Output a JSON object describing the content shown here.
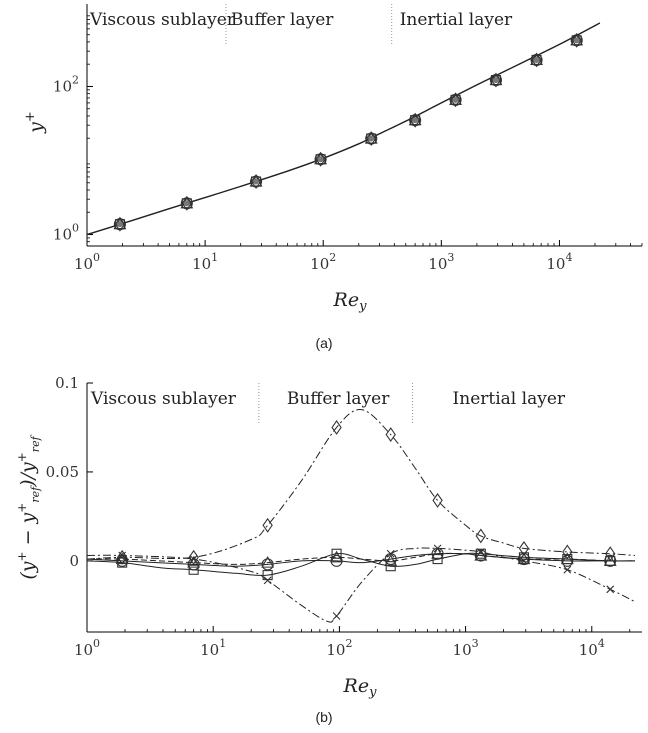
{
  "captions": {
    "a": "(a)",
    "b": "(b)"
  },
  "chart_data": [
    {
      "id": "a",
      "type": "line",
      "xscale": "log",
      "yscale": "log",
      "xlim": [
        1,
        50000
      ],
      "ylim": [
        0.7,
        1300
      ],
      "xlabel": "Re_y",
      "ylabel": "y+",
      "xticks": [
        {
          "base": "10",
          "exp": "0",
          "value": 1
        },
        {
          "base": "10",
          "exp": "1",
          "value": 10
        },
        {
          "base": "10",
          "exp": "2",
          "value": 100
        },
        {
          "base": "10",
          "exp": "3",
          "value": 1000
        },
        {
          "base": "10",
          "exp": "4",
          "value": 10000
        }
      ],
      "yticks": [
        {
          "base": "10",
          "exp": "0",
          "value": 1
        },
        {
          "base": "10",
          "exp": "2",
          "value": 100
        }
      ],
      "regions": [
        {
          "label": "Viscous sublayer",
          "x_start": 1
        },
        {
          "label": "Buffer layer",
          "x_start": 15
        },
        {
          "label": "Inertial layer",
          "x_start": 380
        }
      ],
      "region_dividers": [
        15,
        380
      ],
      "curve": {
        "x": [
          1,
          2,
          5,
          10,
          20,
          50,
          100,
          200,
          300,
          500,
          1000,
          2000,
          5000,
          10000,
          22000
        ],
        "y": [
          1,
          1.41,
          2.24,
          3.16,
          4.47,
          7.2,
          10.7,
          16.8,
          23,
          34,
          60,
          105,
          215,
          370,
          720
        ]
      },
      "markers": {
        "x": [
          1.9,
          7,
          27,
          95,
          255,
          600,
          1320,
          2900,
          6400,
          14000
        ],
        "y": [
          1.38,
          2.64,
          5.2,
          10.4,
          19.8,
          35,
          66,
          122,
          228,
          420
        ]
      }
    },
    {
      "id": "b",
      "type": "line",
      "xscale": "log",
      "xlim": [
        1,
        25000
      ],
      "ylim": [
        -0.04,
        0.1
      ],
      "xlabel": "Re_y",
      "ylabel": "(y+ − y+ref)/y+ref",
      "xticks": [
        {
          "base": "10",
          "exp": "0",
          "value": 1
        },
        {
          "base": "10",
          "exp": "1",
          "value": 10
        },
        {
          "base": "10",
          "exp": "2",
          "value": 100
        },
        {
          "base": "10",
          "exp": "3",
          "value": 1000
        },
        {
          "base": "10",
          "exp": "4",
          "value": 10000
        }
      ],
      "yticks": [
        {
          "label": "0.1",
          "value": 0.1
        },
        {
          "label": "0.05",
          "value": 0.05
        },
        {
          "label": "0",
          "value": 0
        }
      ],
      "regions": [
        {
          "label": "Viscous sublayer",
          "x_start": 1
        },
        {
          "label": "Buffer layer",
          "x_start": 23
        },
        {
          "label": "Inertial layer",
          "x_start": 380
        }
      ],
      "region_dividers": [
        23,
        380
      ],
      "series": [
        {
          "marker": "diamond",
          "dash": "dashdot",
          "x": [
            1,
            1.9,
            7,
            20,
            27,
            50,
            95,
            150,
            255,
            400,
            600,
            1000,
            1320,
            2000,
            2900,
            6400,
            14000,
            22000
          ],
          "y": [
            0.001,
            0.002,
            0.002,
            0.012,
            0.02,
            0.045,
            0.075,
            0.085,
            0.071,
            0.052,
            0.034,
            0.02,
            0.014,
            0.01,
            0.007,
            0.005,
            0.004,
            0.003
          ],
          "mx": [
            1.9,
            7,
            27,
            95,
            255,
            600,
            1320,
            2900,
            6400,
            14000
          ],
          "my": [
            0.002,
            0.002,
            0.02,
            0.075,
            0.071,
            0.034,
            0.014,
            0.007,
            0.005,
            0.004
          ]
        },
        {
          "marker": "cross",
          "dash": "dashdot",
          "x": [
            1,
            1.9,
            7,
            20,
            27,
            50,
            80,
            95,
            150,
            255,
            400,
            600,
            1000,
            1320,
            2000,
            2900,
            6400,
            14000,
            22000
          ],
          "y": [
            0.003,
            0.003,
            0.001,
            -0.006,
            -0.011,
            -0.025,
            -0.034,
            -0.031,
            -0.012,
            0.004,
            0.007,
            0.007,
            0.006,
            0.005,
            0.002,
            0.0,
            -0.005,
            -0.016,
            -0.023
          ],
          "mx": [
            1.9,
            7,
            27,
            95,
            255,
            600,
            1320,
            2900,
            6400,
            14000
          ],
          "my": [
            0.003,
            0.001,
            -0.011,
            -0.031,
            0.004,
            0.007,
            0.005,
            0.0,
            -0.005,
            -0.016
          ]
        },
        {
          "marker": "square",
          "dash": "solid",
          "x": [
            1,
            1.9,
            4,
            7,
            15,
            27,
            50,
            95,
            150,
            255,
            400,
            600,
            1000,
            1320,
            2900,
            6400,
            14000,
            22000
          ],
          "y": [
            0.0,
            -0.001,
            -0.004,
            -0.005,
            -0.007,
            -0.008,
            -0.003,
            0.004,
            0.001,
            -0.003,
            -0.002,
            0.001,
            0.004,
            0.004,
            0.002,
            0.001,
            0.0,
            0.0
          ],
          "mx": [
            1.9,
            7,
            27,
            95,
            255,
            600,
            1320,
            2900,
            6400,
            14000
          ],
          "my": [
            -0.001,
            -0.005,
            -0.008,
            0.004,
            -0.003,
            0.001,
            0.004,
            0.002,
            0.001,
            0.0
          ]
        },
        {
          "marker": "circle",
          "dash": "solid",
          "x": [
            1,
            1.9,
            7,
            15,
            27,
            50,
            95,
            150,
            255,
            400,
            600,
            1000,
            1320,
            2900,
            6400,
            14000,
            22000
          ],
          "y": [
            0.001,
            0.0,
            -0.002,
            -0.003,
            -0.002,
            0.0,
            0.0,
            -0.001,
            0.001,
            0.003,
            0.004,
            0.004,
            0.003,
            0.001,
            0.0,
            0.0,
            0.0
          ],
          "mx": [
            1.9,
            7,
            27,
            95,
            255,
            600,
            1320,
            2900,
            6400,
            14000
          ],
          "my": [
            0.0,
            -0.002,
            -0.002,
            0.0,
            0.001,
            0.004,
            0.003,
            0.001,
            0.0,
            0.0
          ]
        },
        {
          "marker": "triangle",
          "dash": "dashed",
          "x": [
            1,
            1.9,
            7,
            15,
            27,
            50,
            95,
            150,
            255,
            400,
            600,
            1000,
            1320,
            2900,
            6400,
            14000,
            22000
          ],
          "y": [
            0.001,
            0.001,
            -0.001,
            -0.002,
            -0.001,
            0.001,
            0.002,
            0.001,
            0.0,
            0.002,
            0.004,
            0.004,
            0.003,
            0.001,
            0.001,
            0.0,
            0.0
          ],
          "mx": [
            1.9,
            7,
            27,
            95,
            255,
            600,
            1320,
            2900,
            6400,
            14000
          ],
          "my": [
            0.001,
            -0.001,
            -0.001,
            0.002,
            0.0,
            0.004,
            0.003,
            0.001,
            0.001,
            0.0
          ]
        }
      ]
    }
  ]
}
